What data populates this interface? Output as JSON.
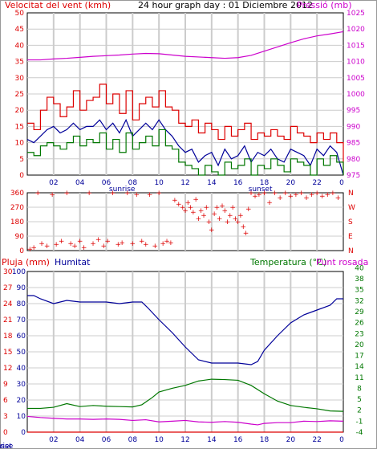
{
  "chart_data": [
    {
      "id": "wind_pressure",
      "type": "line",
      "title": "24 hour graph day : 01 Diciembre 2012",
      "left_label": "Velocitat del vent (kmh)",
      "right_label": "Pressió (mb)",
      "x_ticks": [
        "02",
        "04",
        "06",
        "08",
        "10",
        "12",
        "14",
        "16",
        "18",
        "20",
        "22"
      ],
      "x_end_tick": "0",
      "sunrise_label": "sunrise",
      "sunset_label": "sunset",
      "sunrise_hour": 7.2,
      "sunset_hour": 17.7,
      "y_left": {
        "min": 0,
        "max": 50,
        "ticks": [
          "0",
          "5",
          "10",
          "15",
          "20",
          "25",
          "30",
          "35",
          "40",
          "45",
          "50"
        ]
      },
      "y_right": {
        "min": 975,
        "max": 1025,
        "ticks": [
          "975",
          "980",
          "985",
          "990",
          "995",
          "1000",
          "1005",
          "1010",
          "1015",
          "1020",
          "1025"
        ]
      },
      "series": [
        {
          "name": "Pressió",
          "axis": "right",
          "color": "#cc00cc",
          "x": [
            0,
            1,
            2,
            3,
            4,
            5,
            6,
            7,
            8,
            9,
            10,
            11,
            12,
            13,
            14,
            15,
            16,
            17,
            18,
            19,
            20,
            21,
            22,
            23,
            24
          ],
          "values": [
            1010.5,
            1010.5,
            1010.8,
            1011,
            1011.3,
            1011.6,
            1011.8,
            1012,
            1012.3,
            1012.5,
            1012.4,
            1012,
            1011.6,
            1011.4,
            1011.2,
            1011,
            1011.2,
            1011.9,
            1013.2,
            1014.5,
            1015.8,
            1017,
            1017.9,
            1018.5,
            1019.2
          ]
        },
        {
          "name": "Ratxa",
          "axis": "left",
          "color": "#dd0000",
          "step": true,
          "x": [
            0,
            0.5,
            1,
            1.5,
            2,
            2.5,
            3,
            3.5,
            4,
            4.5,
            5,
            5.5,
            6,
            6.5,
            7,
            7.5,
            8,
            8.5,
            9,
            9.5,
            10,
            10.5,
            11,
            11.5,
            12,
            12.5,
            13,
            13.5,
            14,
            14.5,
            15,
            15.5,
            16,
            16.5,
            17,
            17.5,
            18,
            18.5,
            19,
            19.5,
            20,
            20.5,
            21,
            21.5,
            22,
            22.5,
            23,
            23.5,
            24
          ],
          "values": [
            16,
            14,
            20,
            24,
            22,
            18,
            21,
            26,
            20,
            23,
            24,
            28,
            22,
            25,
            19,
            26,
            17,
            22,
            24,
            21,
            26,
            21,
            20,
            16,
            15,
            17,
            13,
            16,
            14,
            11,
            15,
            12,
            14,
            16,
            11,
            13,
            12,
            14,
            12,
            11,
            15,
            13,
            12,
            10,
            13,
            11,
            13,
            10,
            0
          ]
        },
        {
          "name": "Vent mitjà",
          "axis": "left",
          "color": "#000099",
          "x": [
            0,
            0.5,
            1,
            1.5,
            2,
            2.5,
            3,
            3.5,
            4,
            4.5,
            5,
            5.5,
            6,
            6.5,
            7,
            7.5,
            8,
            8.5,
            9,
            9.5,
            10,
            10.5,
            11,
            11.5,
            12,
            12.5,
            13,
            13.5,
            14,
            14.5,
            15,
            15.5,
            16,
            16.5,
            17,
            17.5,
            18,
            18.5,
            19,
            19.5,
            20,
            20.5,
            21,
            21.5,
            22,
            22.5,
            23,
            23.5,
            24
          ],
          "values": [
            11,
            10,
            12,
            14,
            15,
            13,
            14,
            16,
            14,
            15,
            15,
            17,
            14,
            16,
            13,
            17,
            12,
            14,
            16,
            14,
            17,
            14,
            12,
            9,
            7,
            8,
            4,
            6,
            7,
            3,
            8,
            5,
            6,
            9,
            4,
            7,
            6,
            8,
            5,
            4,
            8,
            7,
            6,
            3,
            8,
            6,
            9,
            7,
            0
          ]
        },
        {
          "name": "Vent mínim",
          "axis": "left",
          "color": "#007700",
          "step": true,
          "x": [
            0,
            0.5,
            1,
            1.5,
            2,
            2.5,
            3,
            3.5,
            4,
            4.5,
            5,
            5.5,
            6,
            6.5,
            7,
            7.5,
            8,
            8.5,
            9,
            9.5,
            10,
            10.5,
            11,
            11.5,
            12,
            12.5,
            13,
            13.5,
            14,
            14.5,
            15,
            15.5,
            16,
            16.5,
            17,
            17.5,
            18,
            18.5,
            19,
            19.5,
            20,
            20.5,
            21,
            21.5,
            22,
            22.5,
            23,
            23.5,
            24
          ],
          "values": [
            7,
            6,
            9,
            10,
            9,
            8,
            10,
            12,
            9,
            11,
            10,
            13,
            8,
            11,
            7,
            13,
            8,
            10,
            12,
            9,
            14,
            9,
            8,
            4,
            3,
            2,
            0,
            3,
            1,
            0,
            4,
            2,
            3,
            5,
            0,
            3,
            2,
            5,
            3,
            1,
            5,
            4,
            3,
            0,
            5,
            3,
            6,
            4,
            0
          ]
        }
      ]
    },
    {
      "id": "wind_direction",
      "type": "scatter",
      "left_ticks": [
        "0",
        "90",
        "180",
        "270",
        "360"
      ],
      "right_ticks": [
        "N",
        "E",
        "S",
        "W",
        "N"
      ],
      "y_min": 0,
      "y_max": 360,
      "series": [
        {
          "name": "Direcció del vent",
          "color": "#dd0000",
          "x": [
            0.2,
            0.5,
            0.8,
            1.1,
            1.5,
            1.9,
            2.2,
            2.6,
            3.0,
            3.3,
            3.6,
            4.0,
            4.3,
            4.7,
            5.0,
            5.4,
            5.8,
            6.1,
            6.5,
            6.9,
            7.2,
            7.6,
            8.0,
            8.3,
            8.7,
            9.0,
            9.3,
            9.7,
            10.0,
            10.3,
            10.6,
            10.9,
            11.2,
            11.5,
            11.8,
            12.0,
            12.2,
            12.4,
            12.6,
            12.8,
            13.0,
            13.2,
            13.4,
            13.6,
            13.8,
            14.0,
            14.2,
            14.4,
            14.6,
            14.8,
            15.0,
            15.2,
            15.4,
            15.6,
            15.8,
            16.0,
            16.2,
            16.4,
            16.6,
            16.8,
            17.0,
            17.3,
            17.6,
            18.0,
            18.4,
            18.8,
            19.2,
            19.6,
            20.0,
            20.4,
            20.8,
            21.2,
            21.6,
            22.0,
            22.4,
            22.8,
            23.2,
            23.6
          ],
          "values": [
            10,
            20,
            360,
            45,
            30,
            350,
            40,
            60,
            360,
            45,
            30,
            60,
            20,
            360,
            45,
            70,
            30,
            60,
            360,
            40,
            50,
            360,
            45,
            350,
            60,
            40,
            350,
            30,
            360,
            45,
            60,
            50,
            315,
            290,
            270,
            250,
            300,
            270,
            240,
            320,
            200,
            250,
            220,
            270,
            180,
            130,
            230,
            270,
            200,
            280,
            250,
            180,
            220,
            270,
            200,
            180,
            220,
            150,
            110,
            260,
            360,
            340,
            350,
            360,
            300,
            360,
            330,
            360,
            340,
            350,
            360,
            330,
            350,
            360,
            340,
            350,
            360,
            330
          ]
        }
      ]
    },
    {
      "id": "temp_humidity",
      "type": "line",
      "left_label_rain": "Pluja (mm)",
      "left_label_hum": "Humitat",
      "right_label": "Temperatura (°C)",
      "right_label2": "Punt rosada",
      "x_ticks": [
        "02",
        "04",
        "06",
        "08",
        "10",
        "12",
        "14",
        "16",
        "18",
        "20",
        "22"
      ],
      "x_end_tick": "0",
      "sunrise_label": "sunrise",
      "sunset_label": "sunset",
      "rain_ticks": [
        "0",
        "3",
        "6",
        "9",
        "12",
        "15",
        "18",
        "21",
        "24",
        "27",
        "30"
      ],
      "hum_ticks": [
        "0",
        "10",
        "20",
        "30",
        "40",
        "50",
        "60",
        "70",
        "80",
        "90",
        "100"
      ],
      "temp_ticks": [
        "-4",
        "-1",
        "2",
        "5",
        "8",
        "11",
        "14",
        "17",
        "20",
        "23",
        "26",
        "29",
        "32",
        "35",
        "38",
        "40"
      ],
      "temp_range": [
        -4,
        40
      ],
      "series": [
        {
          "name": "Humitat",
          "axis": "humidity",
          "color": "#000099",
          "x": [
            0,
            0.5,
            1,
            2,
            3,
            4,
            5,
            6,
            7,
            8,
            8.7,
            9.2,
            10,
            11,
            12,
            13,
            14,
            15,
            16,
            17,
            17.5,
            18,
            19,
            20,
            21,
            22,
            23,
            23.5,
            24
          ],
          "values": [
            85,
            85,
            83,
            80,
            82,
            81,
            81,
            81,
            80,
            81,
            81,
            77,
            70,
            62,
            53,
            45,
            43,
            43,
            43,
            42,
            44,
            51,
            60,
            68,
            73,
            76,
            79,
            83,
            83
          ]
        },
        {
          "name": "Temperatura",
          "axis": "temperature",
          "color": "#007700",
          "x": [
            0,
            1,
            2,
            3,
            4,
            5,
            6,
            7,
            8,
            8.7,
            9.5,
            10,
            11,
            12,
            13,
            14,
            15,
            16,
            17,
            18,
            19,
            20,
            21,
            22,
            23,
            24
          ],
          "values": [
            2.5,
            2.5,
            2.8,
            3.8,
            3.0,
            3.3,
            3.1,
            3.0,
            2.9,
            3.5,
            5.5,
            7.0,
            8.0,
            8.8,
            10.0,
            10.5,
            10.4,
            10.2,
            8.8,
            6.5,
            4.5,
            3.3,
            2.8,
            2.4,
            1.8,
            1.7
          ]
        },
        {
          "name": "Punt rosada",
          "axis": "temperature",
          "color": "#cc00cc",
          "x": [
            0,
            1,
            2,
            3,
            4,
            5,
            6,
            7,
            8,
            9,
            10,
            11,
            12,
            13,
            14,
            15,
            16,
            17,
            17.5,
            18,
            19,
            20,
            21,
            22,
            23,
            24
          ],
          "values": [
            0.3,
            0.0,
            -0.2,
            -0.4,
            -0.4,
            -0.5,
            -0.4,
            -0.5,
            -0.8,
            -0.6,
            -1.2,
            -1.0,
            -0.8,
            -1.2,
            -1.3,
            -1.1,
            -1.3,
            -1.8,
            -2.0,
            -1.6,
            -1.4,
            -1.4,
            -1.0,
            -1.1,
            -0.9,
            -1.0
          ]
        },
        {
          "name": "Pluja",
          "axis": "rain",
          "color": "#dd0000",
          "x": [
            0,
            24
          ],
          "values": [
            0,
            0
          ]
        }
      ]
    }
  ]
}
